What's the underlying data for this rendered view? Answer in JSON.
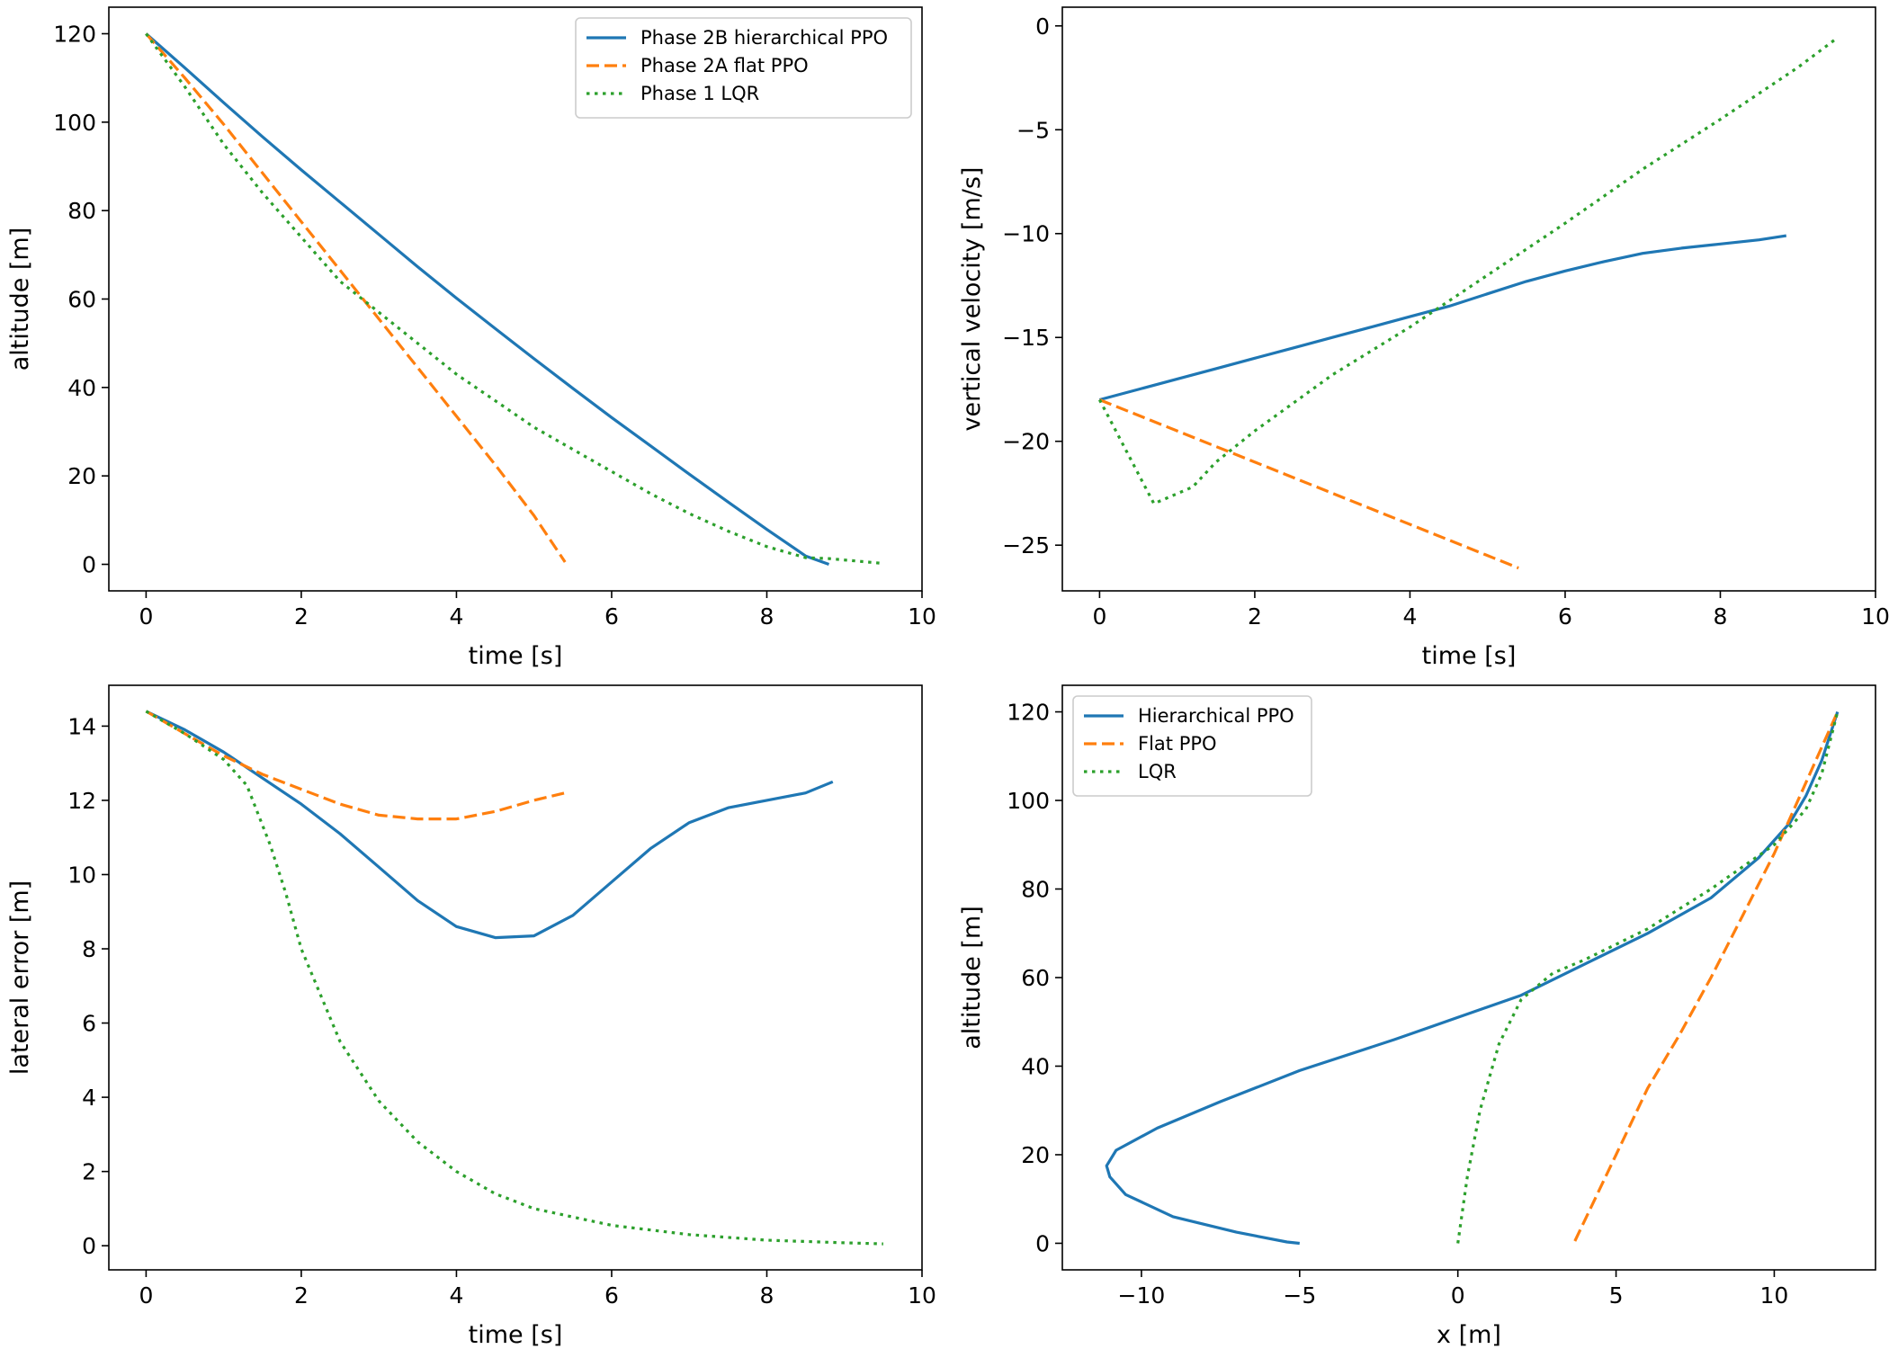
{
  "colors": {
    "blue": "#1f77b4",
    "orange": "#ff7f0e",
    "green": "#2ca02c",
    "frame": "#000000",
    "legend_border": "#cccccc"
  },
  "chart_data": [
    {
      "type": "line",
      "panel": "top-left",
      "xlabel": "time [s]",
      "ylabel": "altitude [m]",
      "xlim": [
        -0.48,
        10.0
      ],
      "ylim": [
        -6.0,
        126.0
      ],
      "xticks": [
        0,
        2,
        4,
        6,
        8,
        10
      ],
      "yticks": [
        0,
        20,
        40,
        60,
        80,
        100,
        120
      ],
      "legend": "top-right",
      "series": [
        {
          "name": "Phase 2B hierarchical PPO",
          "color": "blue",
          "style": "solid",
          "points": [
            [
              0,
              120
            ],
            [
              0.5,
              112.3
            ],
            [
              1,
              104.4
            ],
            [
              1.5,
              96.7
            ],
            [
              2,
              89.2
            ],
            [
              2.5,
              81.9
            ],
            [
              3,
              74.6
            ],
            [
              3.5,
              67.3
            ],
            [
              4,
              60.2
            ],
            [
              4.5,
              53.3
            ],
            [
              5,
              46.5
            ],
            [
              5.5,
              39.8
            ],
            [
              6,
              33.2
            ],
            [
              6.5,
              26.8
            ],
            [
              7,
              20.4
            ],
            [
              7.5,
              14.1
            ],
            [
              8,
              7.9
            ],
            [
              8.5,
              1.9
            ],
            [
              8.8,
              0
            ]
          ]
        },
        {
          "name": "Phase 2A flat PPO",
          "color": "orange",
          "style": "dashed",
          "points": [
            [
              0,
              120
            ],
            [
              0.5,
              110
            ],
            [
              1,
              99.5
            ],
            [
              1.5,
              88.5
            ],
            [
              2,
              77.5
            ],
            [
              2.5,
              66.5
            ],
            [
              3,
              55.5
            ],
            [
              3.5,
              44.5
            ],
            [
              4,
              33.5
            ],
            [
              4.5,
              22.5
            ],
            [
              5,
              11
            ],
            [
              5.4,
              0.5
            ]
          ]
        },
        {
          "name": "Phase 1 LQR",
          "color": "green",
          "style": "dotted",
          "points": [
            [
              0,
              120
            ],
            [
              0.5,
              108
            ],
            [
              1,
              95
            ],
            [
              1.5,
              84
            ],
            [
              2,
              74
            ],
            [
              2.5,
              64
            ],
            [
              3,
              57
            ],
            [
              3.5,
              50
            ],
            [
              4,
              43
            ],
            [
              4.5,
              37
            ],
            [
              5,
              31
            ],
            [
              5.5,
              26
            ],
            [
              6,
              21
            ],
            [
              6.5,
              16
            ],
            [
              7,
              11.5
            ],
            [
              7.5,
              7.5
            ],
            [
              8,
              4
            ],
            [
              8.5,
              1.5
            ],
            [
              8.8,
              1.3
            ],
            [
              9.5,
              0.2
            ]
          ]
        }
      ]
    },
    {
      "type": "line",
      "panel": "top-right",
      "xlabel": "time [s]",
      "ylabel": "vertical velocity [m/s]",
      "xlim": [
        -0.48,
        10.0
      ],
      "ylim": [
        -27.2,
        0.9
      ],
      "xticks": [
        0,
        2,
        4,
        6,
        8,
        10
      ],
      "yticks": [
        -25,
        -20,
        -15,
        -10,
        -5,
        0
      ],
      "series": [
        {
          "name": "",
          "color": "blue",
          "style": "solid",
          "points": [
            [
              0,
              -18
            ],
            [
              0.5,
              -17.5
            ],
            [
              1,
              -17
            ],
            [
              1.5,
              -16.5
            ],
            [
              2,
              -16
            ],
            [
              2.5,
              -15.5
            ],
            [
              3,
              -15
            ],
            [
              3.5,
              -14.5
            ],
            [
              4,
              -14
            ],
            [
              4.5,
              -13.5
            ],
            [
              5,
              -12.9
            ],
            [
              5.5,
              -12.3
            ],
            [
              6,
              -11.8
            ],
            [
              6.5,
              -11.35
            ],
            [
              7,
              -10.95
            ],
            [
              7.5,
              -10.7
            ],
            [
              8,
              -10.5
            ],
            [
              8.5,
              -10.3
            ],
            [
              8.85,
              -10.1
            ]
          ]
        },
        {
          "name": "",
          "color": "orange",
          "style": "dashed",
          "points": [
            [
              0,
              -18
            ],
            [
              5.4,
              -26.1
            ]
          ]
        },
        {
          "name": "",
          "color": "green",
          "style": "dotted",
          "points": [
            [
              0,
              -18
            ],
            [
              0.7,
              -23
            ],
            [
              1.2,
              -22.2
            ],
            [
              1.5,
              -21
            ],
            [
              2,
              -19.5
            ],
            [
              3,
              -16.8
            ],
            [
              4,
              -14.5
            ],
            [
              5,
              -12
            ],
            [
              6,
              -9.5
            ],
            [
              7,
              -6.9
            ],
            [
              8,
              -4.5
            ],
            [
              9,
              -2
            ],
            [
              9.5,
              -0.6
            ]
          ]
        }
      ]
    },
    {
      "type": "line",
      "panel": "bottom-left",
      "xlabel": "time [s]",
      "ylabel": "lateral error [m]",
      "xlim": [
        -0.48,
        10.0
      ],
      "ylim": [
        -0.65,
        15.1
      ],
      "xticks": [
        0,
        2,
        4,
        6,
        8,
        10
      ],
      "yticks": [
        0,
        2,
        4,
        6,
        8,
        10,
        12,
        14
      ],
      "series": [
        {
          "name": "",
          "color": "blue",
          "style": "solid",
          "points": [
            [
              0,
              14.4
            ],
            [
              0.5,
              13.9
            ],
            [
              1,
              13.3
            ],
            [
              1.5,
              12.6
            ],
            [
              2,
              11.9
            ],
            [
              2.5,
              11.1
            ],
            [
              3,
              10.2
            ],
            [
              3.5,
              9.3
            ],
            [
              4,
              8.6
            ],
            [
              4.5,
              8.3
            ],
            [
              5,
              8.35
            ],
            [
              5.5,
              8.9
            ],
            [
              6,
              9.8
            ],
            [
              6.5,
              10.7
            ],
            [
              7,
              11.4
            ],
            [
              7.5,
              11.8
            ],
            [
              8,
              12
            ],
            [
              8.5,
              12.2
            ],
            [
              8.85,
              12.5
            ]
          ]
        },
        {
          "name": "",
          "color": "orange",
          "style": "dashed",
          "points": [
            [
              0,
              14.4
            ],
            [
              0.5,
              13.8
            ],
            [
              1,
              13.2
            ],
            [
              1.5,
              12.7
            ],
            [
              2,
              12.3
            ],
            [
              2.5,
              11.9
            ],
            [
              3,
              11.6
            ],
            [
              3.5,
              11.5
            ],
            [
              4,
              11.5
            ],
            [
              4.5,
              11.7
            ],
            [
              5,
              12
            ],
            [
              5.4,
              12.2
            ]
          ]
        },
        {
          "name": "",
          "color": "green",
          "style": "dotted",
          "points": [
            [
              0,
              14.4
            ],
            [
              0.5,
              13.8
            ],
            [
              1,
              13.1
            ],
            [
              1.3,
              12.4
            ],
            [
              1.6,
              10.8
            ],
            [
              1.8,
              9.5
            ],
            [
              2,
              8
            ],
            [
              2.5,
              5.5
            ],
            [
              3,
              3.9
            ],
            [
              3.5,
              2.8
            ],
            [
              4,
              2
            ],
            [
              4.5,
              1.4
            ],
            [
              5,
              1
            ],
            [
              6,
              0.55
            ],
            [
              7,
              0.3
            ],
            [
              8,
              0.15
            ],
            [
              9,
              0.08
            ],
            [
              9.5,
              0.05
            ]
          ]
        }
      ]
    },
    {
      "type": "line",
      "panel": "bottom-right",
      "xlabel": "x [m]",
      "ylabel": "altitude [m]",
      "xlim": [
        -12.5,
        13.2
      ],
      "ylim": [
        -6.0,
        126.0
      ],
      "xticks": [
        -10,
        -5,
        0,
        5,
        10
      ],
      "yticks": [
        0,
        20,
        40,
        60,
        80,
        100,
        120
      ],
      "legend": "top-left",
      "series": [
        {
          "name": "Hierarchical PPO",
          "color": "blue",
          "style": "solid",
          "points": [
            [
              -5,
              0
            ],
            [
              -5.4,
              0.3
            ],
            [
              -7,
              2.5
            ],
            [
              -9,
              6
            ],
            [
              -10.5,
              11
            ],
            [
              -11,
              15
            ],
            [
              -11.1,
              17.5
            ],
            [
              -10.8,
              21
            ],
            [
              -9.5,
              26
            ],
            [
              -7.5,
              32
            ],
            [
              -5,
              39
            ],
            [
              -2,
              46
            ],
            [
              0,
              51
            ],
            [
              2,
              56
            ],
            [
              4,
              63
            ],
            [
              6,
              70
            ],
            [
              8,
              78
            ],
            [
              9.5,
              87
            ],
            [
              10.5,
              95
            ],
            [
              11,
              101
            ],
            [
              11.5,
              109
            ],
            [
              12,
              120
            ]
          ]
        },
        {
          "name": "Flat PPO",
          "color": "orange",
          "style": "dashed",
          "points": [
            [
              3.7,
              0.5
            ],
            [
              4,
              5
            ],
            [
              5,
              20
            ],
            [
              6,
              35
            ],
            [
              7,
              47
            ],
            [
              8,
              60
            ],
            [
              9,
              74
            ],
            [
              10,
              88
            ],
            [
              11,
              104
            ],
            [
              12,
              120
            ]
          ]
        },
        {
          "name": "LQR",
          "color": "green",
          "style": "dotted",
          "points": [
            [
              0,
              0
            ],
            [
              0.1,
              5
            ],
            [
              0.3,
              15
            ],
            [
              0.7,
              30
            ],
            [
              1.3,
              45
            ],
            [
              2,
              55
            ],
            [
              3,
              61
            ],
            [
              4,
              64
            ],
            [
              6,
              71
            ],
            [
              8,
              80
            ],
            [
              10,
              90
            ],
            [
              11,
              98
            ],
            [
              11.5,
              106
            ],
            [
              12,
              120
            ]
          ]
        }
      ]
    }
  ]
}
